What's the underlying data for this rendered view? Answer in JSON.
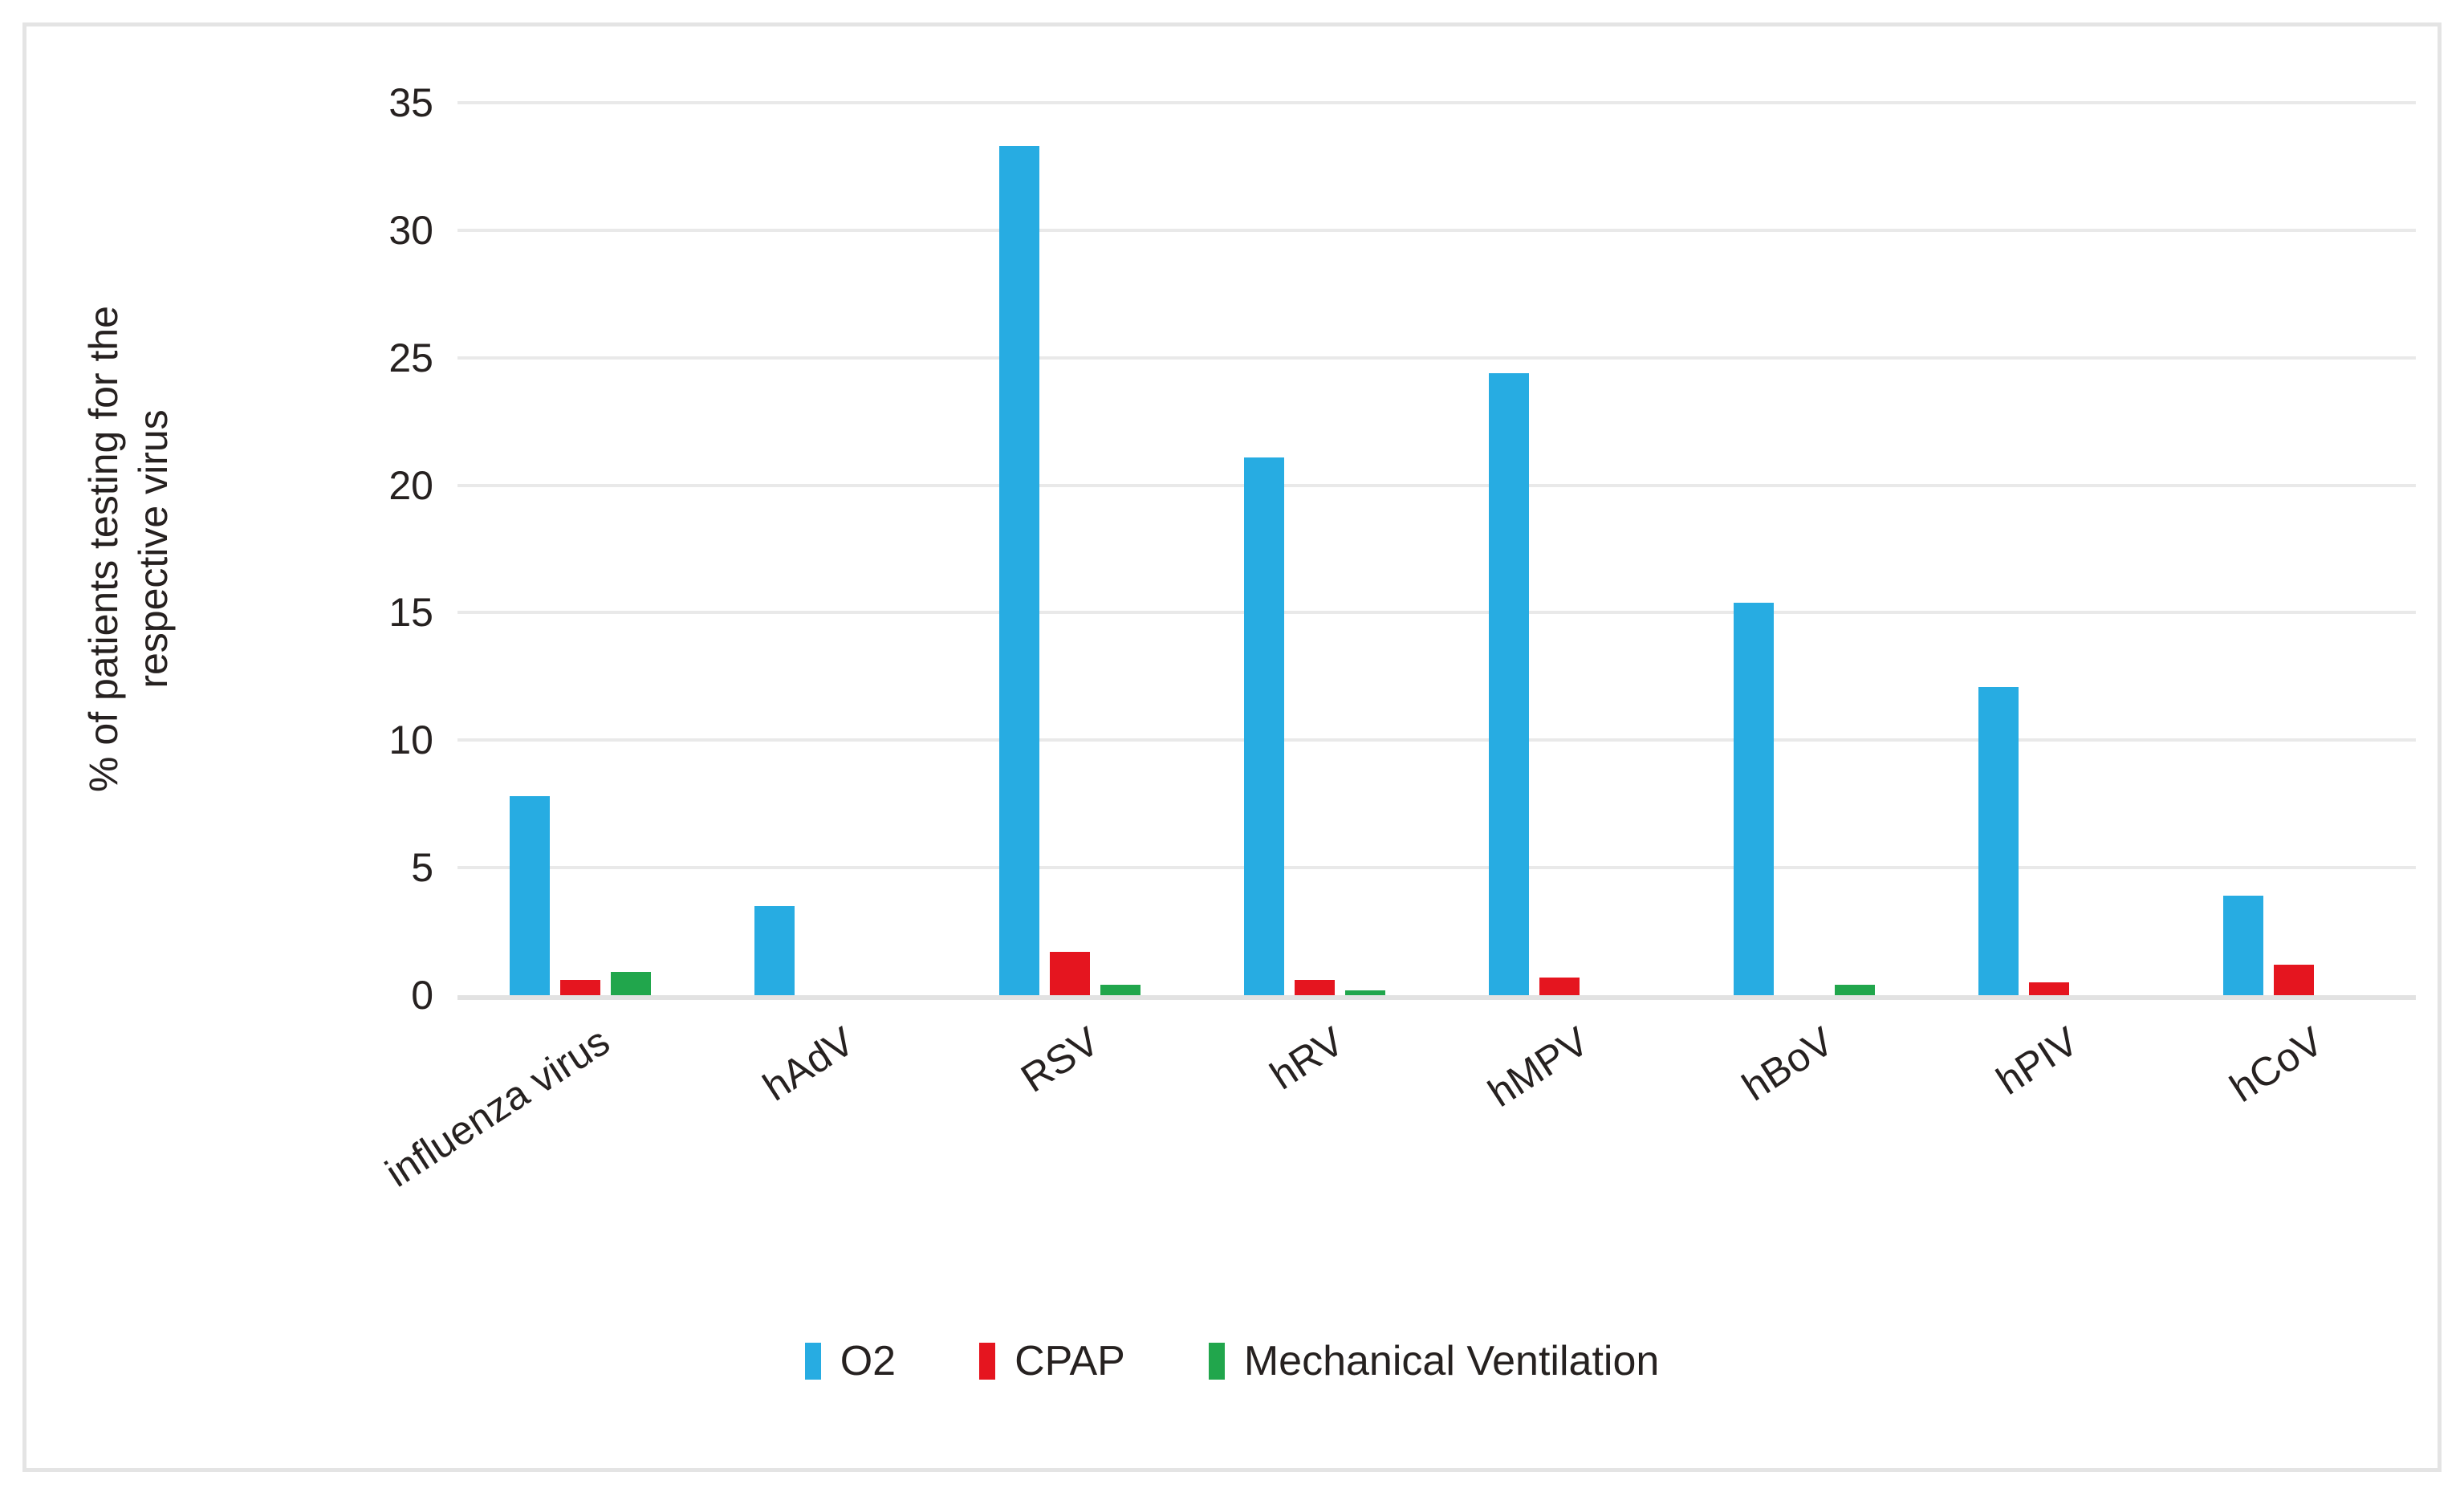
{
  "figure": {
    "background": "#FFFFFF",
    "border_color": "#E4E4E4",
    "gridline_color": "#E9E9E9",
    "baseline_color": "#E2E2E2",
    "text_color": "#262120"
  },
  "chart_data": {
    "type": "bar",
    "title": "",
    "categories": [
      "influenza virus",
      "hAdV",
      "RSV",
      "hRV",
      "hMPV",
      "hBoV",
      "hPIV",
      "hCoV"
    ],
    "series": [
      {
        "name": "O2",
        "color": "#27ACE2",
        "values": [
          7.8,
          3.5,
          33.3,
          21.1,
          24.4,
          15.4,
          12.1,
          3.9
        ]
      },
      {
        "name": "CPAP",
        "color": "#E5151F",
        "values": [
          0.6,
          0,
          1.7,
          0.6,
          0.7,
          0,
          0.5,
          1.2
        ]
      },
      {
        "name": "Mechanical Ventilation",
        "color": "#21A64C",
        "values": [
          0.9,
          0,
          0.4,
          0.2,
          0,
          0.4,
          0,
          0
        ]
      }
    ],
    "xlabel": "",
    "ylabel": "% of patients testing for the respective virus",
    "ylabel_lines": [
      "% of patients testing for the",
      "respective virus"
    ],
    "y_ticks": [
      0,
      5,
      10,
      15,
      20,
      25,
      30,
      35
    ],
    "ylim": [
      0,
      35
    ],
    "grid": true,
    "legend_position": "bottom",
    "category_label_rotation_deg": -33
  }
}
